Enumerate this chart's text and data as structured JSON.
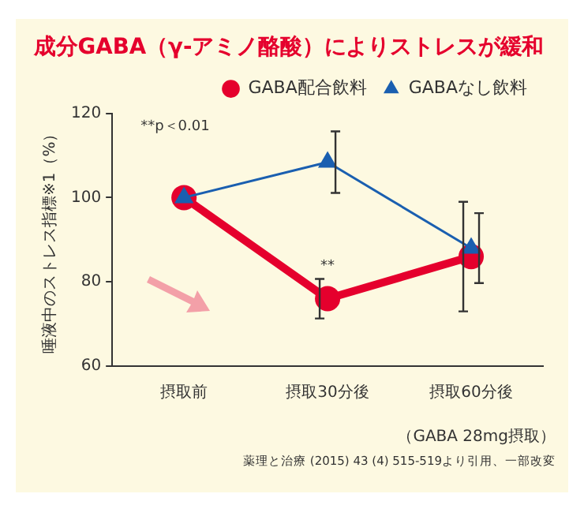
{
  "chart_data": {
    "type": "line",
    "title": "成分GABA（γ-アミノ酪酸）によりストレスが緩和",
    "ylabel": "唾液中のストレス指標※1（%）",
    "categories": [
      "摂取前",
      "摂取30分後",
      "摂取60分後"
    ],
    "series": [
      {
        "name": "GABA配合飲料",
        "color": "#e5002d",
        "values": [
          100,
          76,
          86
        ],
        "errors": [
          null,
          4.7,
          13
        ],
        "marker": "circle"
      },
      {
        "name": "GABAなし飲料",
        "color": "#1a5fb0",
        "values": [
          100,
          108.4,
          88
        ],
        "errors": [
          null,
          7.3,
          8.3
        ],
        "marker": "triangle"
      }
    ],
    "ylim": [
      60,
      120
    ],
    "yticks": [
      60,
      80,
      100,
      120
    ],
    "grid": false,
    "legend": "top right",
    "line_style": "solid",
    "annotations": [
      "**p＜0.01",
      {
        "text": "**",
        "x": "摂取30分後",
        "y": 82
      },
      "（GABA 28mg摂取）",
      "薬理と治療 (2015) 43 (4) 515-519より引用、一部改変"
    ]
  }
}
